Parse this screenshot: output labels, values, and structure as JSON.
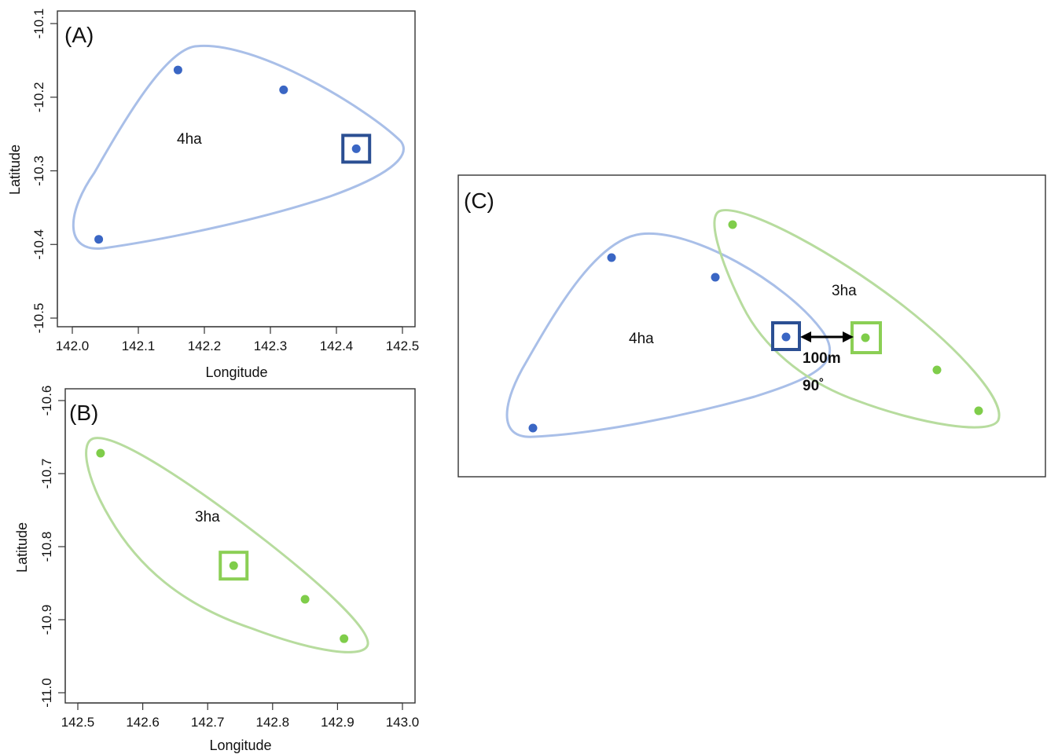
{
  "chart_data": [
    {
      "type": "scatter",
      "panel_label": "(A)",
      "xlabel": "Longitude",
      "ylabel": "Latitude",
      "xlim": [
        142.0,
        142.5
      ],
      "ylim": [
        -10.5,
        -10.1
      ],
      "x_ticks": [
        "142.0",
        "142.1",
        "142.2",
        "142.3",
        "142.4",
        "142.5"
      ],
      "y_ticks": [
        "-10.1",
        "-10.2",
        "-10.3",
        "-10.4",
        "-10.5"
      ],
      "grid": false,
      "points": [
        {
          "x": 142.16,
          "y": -10.163
        },
        {
          "x": 142.32,
          "y": -10.19
        },
        {
          "x": 142.43,
          "y": -10.27,
          "highlighted": true
        },
        {
          "x": 142.04,
          "y": -10.393
        }
      ],
      "color": "#3a66c4",
      "hull_color": "#a9bfe8",
      "highlight_color": "#2b4f93",
      "area_label": "4ha"
    },
    {
      "type": "scatter",
      "panel_label": "(B)",
      "xlabel": "Longitude",
      "ylabel": "Latitude",
      "xlim": [
        142.5,
        143.0
      ],
      "ylim": [
        -11.0,
        -10.6
      ],
      "x_ticks": [
        "142.5",
        "142.6",
        "142.7",
        "142.8",
        "142.9",
        "143.0"
      ],
      "y_ticks": [
        "-10.6",
        "-10.7",
        "-10.8",
        "-10.9",
        "-11.0"
      ],
      "grid": false,
      "points": [
        {
          "x": 142.535,
          "y": -10.672
        },
        {
          "x": 142.74,
          "y": -10.826,
          "highlighted": true
        },
        {
          "x": 142.85,
          "y": -10.872
        },
        {
          "x": 142.91,
          "y": -10.926
        }
      ],
      "color": "#7fcd4a",
      "hull_color": "#b7dc9e",
      "highlight_color": "#8bcf55",
      "area_label": "3ha"
    }
  ],
  "panel_c": {
    "panel_label": "(C)",
    "area_label_blue": "4ha",
    "area_label_green": "3ha",
    "distance_label": "100m",
    "angle_label": "90˚"
  }
}
